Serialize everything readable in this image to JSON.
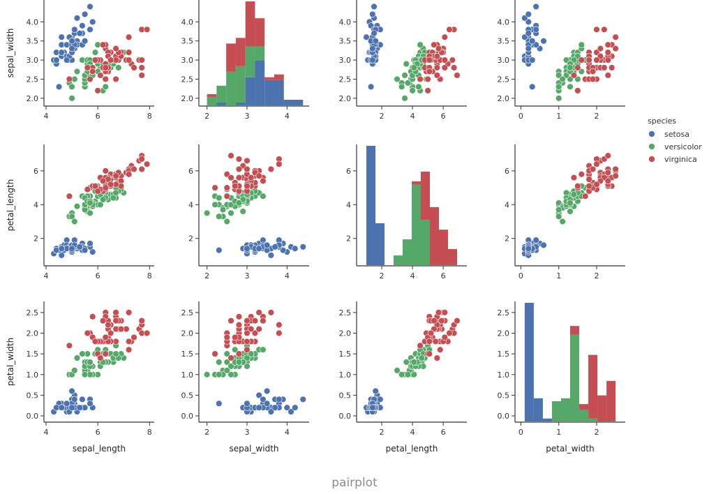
{
  "caption": "pairplot",
  "chart_data": {
    "type": "scatter",
    "title": "",
    "variables": [
      "sepal_width",
      "petal_length",
      "petal_width"
    ],
    "x_variables": [
      "sepal_length",
      "sepal_width",
      "petal_length",
      "petal_width"
    ],
    "y_variables": [
      "sepal_width",
      "petal_length",
      "petal_width"
    ],
    "axes": {
      "sepal_length": {
        "range": [
          4.0,
          8.1
        ],
        "ticks": [
          4,
          6,
          8
        ],
        "tick_labels": [
          "4",
          "6",
          "8"
        ]
      },
      "sepal_width": {
        "range": [
          1.85,
          4.5
        ],
        "ticks": [
          2.0,
          2.5,
          3.0,
          3.5,
          4.0
        ],
        "tick_labels": [
          "2.0",
          "2.5",
          "3.0",
          "3.5",
          "4.0"
        ],
        "x_ticks": [
          2,
          3,
          4
        ],
        "x_tick_labels": [
          "2",
          "3",
          "4"
        ]
      },
      "petal_length": {
        "range": [
          0.5,
          7.4
        ],
        "ticks": [
          2,
          4,
          6
        ],
        "tick_labels": [
          "2",
          "4",
          "6"
        ]
      },
      "petal_width": {
        "range": [
          -0.1,
          2.7
        ],
        "ticks": [
          0.0,
          0.5,
          1.0,
          1.5,
          2.0,
          2.5
        ],
        "tick_labels": [
          "0.0",
          "0.5",
          "1.0",
          "1.5",
          "2.0",
          "2.5"
        ],
        "x_ticks": [
          0,
          1,
          2
        ],
        "x_tick_labels": [
          "0",
          "1",
          "2"
        ]
      }
    },
    "legend": {
      "title": "species",
      "position": "right",
      "entries": [
        {
          "name": "setosa",
          "color": "#4c72b0"
        },
        {
          "name": "versicolor",
          "color": "#55a868"
        },
        {
          "name": "virginica",
          "color": "#c44e52"
        }
      ]
    },
    "series": [
      {
        "name": "setosa",
        "points": [
          [
            5.1,
            3.5,
            1.4,
            0.2
          ],
          [
            4.9,
            3.0,
            1.4,
            0.2
          ],
          [
            4.7,
            3.2,
            1.3,
            0.2
          ],
          [
            4.6,
            3.1,
            1.5,
            0.2
          ],
          [
            5.0,
            3.6,
            1.4,
            0.2
          ],
          [
            5.4,
            3.9,
            1.7,
            0.4
          ],
          [
            4.6,
            3.4,
            1.4,
            0.3
          ],
          [
            5.0,
            3.4,
            1.5,
            0.2
          ],
          [
            4.4,
            2.9,
            1.4,
            0.2
          ],
          [
            4.9,
            3.1,
            1.5,
            0.1
          ],
          [
            5.4,
            3.7,
            1.5,
            0.2
          ],
          [
            4.8,
            3.4,
            1.6,
            0.2
          ],
          [
            4.8,
            3.0,
            1.4,
            0.1
          ],
          [
            4.3,
            3.0,
            1.1,
            0.1
          ],
          [
            5.8,
            4.0,
            1.2,
            0.2
          ],
          [
            5.7,
            4.4,
            1.5,
            0.4
          ],
          [
            5.4,
            3.9,
            1.3,
            0.4
          ],
          [
            5.1,
            3.5,
            1.4,
            0.3
          ],
          [
            5.7,
            3.8,
            1.7,
            0.3
          ],
          [
            5.1,
            3.8,
            1.5,
            0.3
          ],
          [
            5.4,
            3.4,
            1.7,
            0.2
          ],
          [
            5.1,
            3.7,
            1.5,
            0.4
          ],
          [
            4.6,
            3.6,
            1.0,
            0.2
          ],
          [
            5.1,
            3.3,
            1.7,
            0.5
          ],
          [
            4.8,
            3.4,
            1.9,
            0.2
          ],
          [
            5.0,
            3.0,
            1.6,
            0.2
          ],
          [
            5.0,
            3.4,
            1.6,
            0.4
          ],
          [
            5.2,
            3.5,
            1.5,
            0.2
          ],
          [
            5.2,
            3.4,
            1.4,
            0.2
          ],
          [
            4.7,
            3.2,
            1.6,
            0.2
          ],
          [
            4.8,
            3.1,
            1.6,
            0.2
          ],
          [
            5.4,
            3.4,
            1.5,
            0.4
          ],
          [
            5.2,
            4.1,
            1.5,
            0.1
          ],
          [
            5.5,
            4.2,
            1.4,
            0.2
          ],
          [
            4.9,
            3.1,
            1.5,
            0.2
          ],
          [
            5.0,
            3.2,
            1.2,
            0.2
          ],
          [
            5.5,
            3.5,
            1.3,
            0.2
          ],
          [
            4.9,
            3.6,
            1.4,
            0.1
          ],
          [
            4.4,
            3.0,
            1.3,
            0.2
          ],
          [
            5.1,
            3.4,
            1.5,
            0.2
          ],
          [
            5.0,
            3.5,
            1.3,
            0.3
          ],
          [
            4.5,
            2.3,
            1.3,
            0.3
          ],
          [
            4.4,
            3.2,
            1.3,
            0.2
          ],
          [
            5.0,
            3.5,
            1.6,
            0.6
          ],
          [
            5.1,
            3.8,
            1.9,
            0.4
          ],
          [
            4.8,
            3.0,
            1.4,
            0.3
          ],
          [
            5.1,
            3.8,
            1.6,
            0.2
          ],
          [
            4.6,
            3.2,
            1.4,
            0.2
          ],
          [
            5.3,
            3.7,
            1.5,
            0.2
          ],
          [
            5.0,
            3.3,
            1.4,
            0.2
          ]
        ]
      },
      {
        "name": "versicolor",
        "points": [
          [
            7.0,
            3.2,
            4.7,
            1.4
          ],
          [
            6.4,
            3.2,
            4.5,
            1.5
          ],
          [
            6.9,
            3.1,
            4.9,
            1.5
          ],
          [
            5.5,
            2.3,
            4.0,
            1.3
          ],
          [
            6.5,
            2.8,
            4.6,
            1.5
          ],
          [
            5.7,
            2.8,
            4.5,
            1.3
          ],
          [
            6.3,
            3.3,
            4.7,
            1.6
          ],
          [
            4.9,
            2.4,
            3.3,
            1.0
          ],
          [
            6.6,
            2.9,
            4.6,
            1.3
          ],
          [
            5.2,
            2.7,
            3.9,
            1.4
          ],
          [
            5.0,
            2.0,
            3.5,
            1.0
          ],
          [
            5.9,
            3.0,
            4.2,
            1.5
          ],
          [
            6.0,
            2.2,
            4.0,
            1.0
          ],
          [
            6.1,
            2.9,
            4.7,
            1.4
          ],
          [
            5.6,
            2.9,
            3.6,
            1.3
          ],
          [
            6.7,
            3.1,
            4.4,
            1.4
          ],
          [
            5.6,
            3.0,
            4.5,
            1.5
          ],
          [
            5.8,
            2.7,
            4.1,
            1.0
          ],
          [
            6.2,
            2.2,
            4.5,
            1.5
          ],
          [
            5.6,
            2.5,
            3.9,
            1.1
          ],
          [
            5.9,
            3.2,
            4.8,
            1.8
          ],
          [
            6.1,
            2.8,
            4.0,
            1.3
          ],
          [
            6.3,
            2.5,
            4.9,
            1.5
          ],
          [
            6.1,
            2.8,
            4.7,
            1.2
          ],
          [
            6.4,
            2.9,
            4.3,
            1.3
          ],
          [
            6.6,
            3.0,
            4.4,
            1.4
          ],
          [
            6.8,
            2.8,
            4.8,
            1.4
          ],
          [
            6.7,
            3.0,
            5.0,
            1.7
          ],
          [
            6.0,
            2.9,
            4.5,
            1.5
          ],
          [
            5.7,
            2.6,
            3.5,
            1.0
          ],
          [
            5.5,
            2.4,
            3.8,
            1.1
          ],
          [
            5.5,
            2.4,
            3.7,
            1.0
          ],
          [
            5.8,
            2.7,
            3.9,
            1.2
          ],
          [
            6.0,
            2.7,
            5.1,
            1.6
          ],
          [
            5.4,
            3.0,
            4.5,
            1.5
          ],
          [
            6.0,
            3.4,
            4.5,
            1.6
          ],
          [
            6.7,
            3.1,
            4.7,
            1.5
          ],
          [
            6.3,
            2.3,
            4.4,
            1.3
          ],
          [
            5.6,
            3.0,
            4.1,
            1.3
          ],
          [
            5.5,
            2.5,
            4.0,
            1.3
          ],
          [
            5.5,
            2.6,
            4.4,
            1.2
          ],
          [
            6.1,
            3.0,
            4.6,
            1.4
          ],
          [
            5.8,
            2.6,
            4.0,
            1.2
          ],
          [
            5.0,
            2.3,
            3.3,
            1.0
          ],
          [
            5.6,
            2.7,
            4.2,
            1.3
          ],
          [
            5.7,
            3.0,
            4.2,
            1.2
          ],
          [
            5.7,
            2.9,
            4.2,
            1.3
          ],
          [
            6.2,
            2.9,
            4.3,
            1.3
          ],
          [
            5.1,
            2.5,
            3.0,
            1.1
          ],
          [
            5.7,
            2.8,
            4.1,
            1.3
          ]
        ]
      },
      {
        "name": "virginica",
        "points": [
          [
            6.3,
            3.3,
            6.0,
            2.5
          ],
          [
            5.8,
            2.7,
            5.1,
            1.9
          ],
          [
            7.1,
            3.0,
            5.9,
            2.1
          ],
          [
            6.3,
            2.9,
            5.6,
            1.8
          ],
          [
            6.5,
            3.0,
            5.8,
            2.2
          ],
          [
            7.6,
            3.0,
            6.6,
            2.1
          ],
          [
            4.9,
            2.5,
            4.5,
            1.7
          ],
          [
            7.3,
            2.9,
            6.3,
            1.8
          ],
          [
            6.7,
            2.5,
            5.8,
            1.8
          ],
          [
            7.2,
            3.6,
            6.1,
            2.5
          ],
          [
            6.5,
            3.2,
            5.1,
            2.0
          ],
          [
            6.4,
            2.7,
            5.3,
            1.9
          ],
          [
            6.8,
            3.0,
            5.5,
            2.1
          ],
          [
            5.7,
            2.5,
            5.0,
            2.0
          ],
          [
            5.8,
            2.8,
            5.1,
            2.4
          ],
          [
            6.4,
            3.2,
            5.3,
            2.3
          ],
          [
            6.5,
            3.0,
            5.5,
            1.8
          ],
          [
            7.7,
            3.8,
            6.7,
            2.2
          ],
          [
            7.7,
            2.6,
            6.9,
            2.3
          ],
          [
            6.0,
            2.2,
            5.0,
            1.5
          ],
          [
            6.9,
            3.2,
            5.7,
            2.3
          ],
          [
            5.6,
            2.8,
            4.9,
            2.0
          ],
          [
            7.7,
            2.8,
            6.7,
            2.0
          ],
          [
            6.3,
            2.7,
            4.9,
            1.8
          ],
          [
            6.7,
            3.3,
            5.7,
            2.1
          ],
          [
            7.2,
            3.2,
            6.0,
            1.8
          ],
          [
            6.2,
            2.8,
            4.8,
            1.8
          ],
          [
            6.1,
            3.0,
            4.9,
            1.8
          ],
          [
            6.4,
            2.8,
            5.6,
            2.1
          ],
          [
            7.2,
            3.0,
            5.8,
            1.6
          ],
          [
            7.4,
            2.8,
            6.1,
            1.9
          ],
          [
            7.9,
            3.8,
            6.4,
            2.0
          ],
          [
            6.4,
            2.8,
            5.6,
            2.2
          ],
          [
            6.3,
            2.8,
            5.1,
            1.5
          ],
          [
            6.1,
            2.6,
            5.6,
            1.4
          ],
          [
            7.7,
            3.0,
            6.1,
            2.3
          ],
          [
            6.3,
            3.4,
            5.6,
            2.4
          ],
          [
            6.4,
            3.1,
            5.5,
            1.8
          ],
          [
            6.0,
            3.0,
            4.8,
            1.8
          ],
          [
            6.9,
            3.1,
            5.4,
            2.1
          ],
          [
            6.7,
            3.1,
            5.6,
            2.4
          ],
          [
            6.9,
            3.1,
            5.1,
            2.3
          ],
          [
            5.8,
            2.7,
            5.1,
            1.9
          ],
          [
            6.8,
            3.2,
            5.9,
            2.3
          ],
          [
            6.7,
            3.3,
            5.7,
            2.5
          ],
          [
            6.7,
            3.0,
            5.2,
            2.3
          ],
          [
            6.3,
            2.5,
            5.0,
            1.9
          ],
          [
            6.5,
            3.0,
            5.2,
            2.0
          ],
          [
            6.2,
            3.4,
            5.4,
            2.3
          ],
          [
            5.9,
            3.0,
            5.1,
            1.8
          ]
        ]
      }
    ],
    "diagonal": "stacked histogram (10 bins per species)"
  }
}
